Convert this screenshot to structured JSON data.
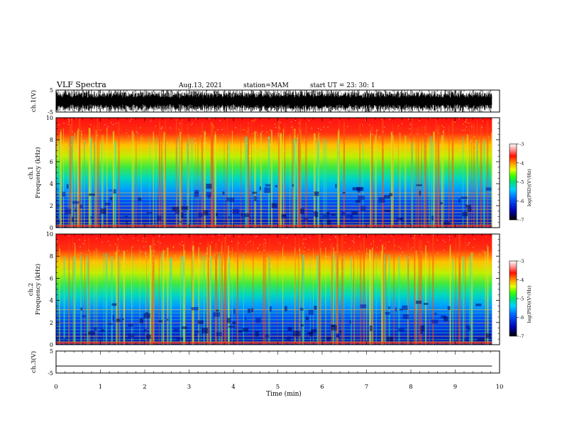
{
  "header": {
    "title": "VLF Spectra",
    "date": "Aug.13, 2021",
    "station": "station=MAM",
    "start": "start UT =  23: 30: 1"
  },
  "chart_data": [
    {
      "type": "line",
      "panel": "ch1-waveform",
      "ylabel": "ch.1(V)",
      "ylim": [
        -5,
        5
      ],
      "yticks": [
        "5",
        "-5"
      ],
      "description_of_data": "dense oscillating waveform spanning roughly -5 to 5 V across the record",
      "xlim": [
        0,
        10
      ]
    },
    {
      "type": "heatmap",
      "panel": "ch1-spectrogram",
      "ylabel": "ch.1\nFrequency (kHz)",
      "ylabel_lines": [
        "ch.1",
        "Frequency (kHz)"
      ],
      "ylim": [
        0,
        10
      ],
      "yticks": [
        "0",
        "2",
        "4",
        "6",
        "8",
        "10"
      ],
      "xlim": [
        0,
        10
      ],
      "data_extent_x": [
        0,
        9.83
      ],
      "colorbar": {
        "label": "log(PSD)(V²/Hz)",
        "range": [
          -7,
          -3
        ],
        "ticks": [
          "-3",
          "-4",
          "-5",
          "-6",
          "-7"
        ]
      }
    },
    {
      "type": "heatmap",
      "panel": "ch2-spectrogram",
      "ylabel": "ch.2\nFrequency (kHz)",
      "ylabel_lines": [
        "ch.2",
        "Frequency (kHz)"
      ],
      "ylim": [
        0,
        10
      ],
      "yticks": [
        "0",
        "2",
        "4",
        "6",
        "8",
        "10"
      ],
      "xlim": [
        0,
        10
      ],
      "data_extent_x": [
        0,
        9.83
      ],
      "colorbar": {
        "label": "log(PSD)(V²/Hz)",
        "range": [
          -7,
          -3
        ],
        "ticks": [
          "-3",
          "-4",
          "-5",
          "-6",
          "-7"
        ]
      }
    },
    {
      "type": "line",
      "panel": "ch3-waveform",
      "ylabel": "ch.3(V)",
      "ylim": [
        -5,
        5
      ],
      "yticks": [
        "5",
        "-5"
      ],
      "xlim": [
        0,
        10
      ],
      "series": [
        {
          "x": [
            0,
            9.83
          ],
          "values": [
            -1.8,
            -1.8
          ]
        }
      ]
    }
  ],
  "xaxis": {
    "label": "Time (min)",
    "ticks": [
      "0",
      "1",
      "2",
      "3",
      "4",
      "5",
      "6",
      "7",
      "8",
      "9",
      "10"
    ]
  },
  "colors": {
    "colormap": [
      "#000020",
      "#0000c8",
      "#0060ff",
      "#00c8ff",
      "#00e080",
      "#40ff00",
      "#e0ff00",
      "#ffb000",
      "#ff2000",
      "#ffffff"
    ]
  }
}
